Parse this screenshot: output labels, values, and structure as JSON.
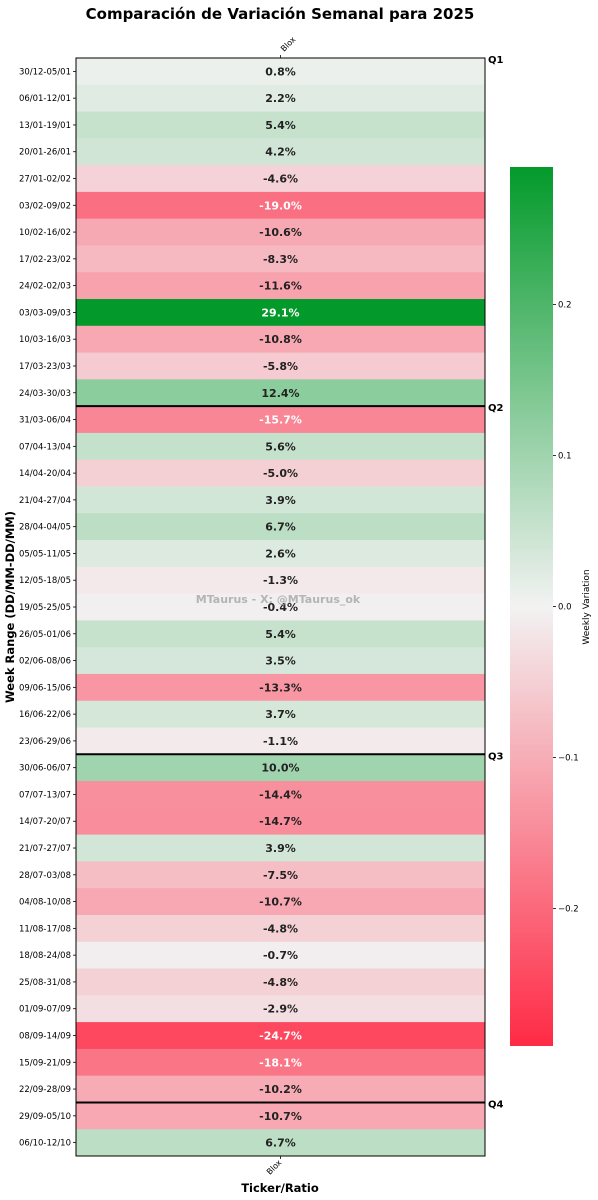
{
  "chart_data": {
    "type": "heatmap",
    "title": "Comparación de Variación Semanal para 2025",
    "xlabel": "Ticker/Ratio",
    "ylabel": "Week Range (DD/MM-DD/MM)",
    "columns": [
      "Blox"
    ],
    "colorbar": {
      "label": "Weekly Variation",
      "ticks": [
        "0.2",
        "0.1",
        "0.0",
        "−0.1",
        "−0.2"
      ],
      "tick_values": [
        0.2,
        0.1,
        0.0,
        -0.1,
        -0.2
      ],
      "range": [
        -0.291,
        0.291
      ],
      "low_color": "#ff2a45",
      "mid_color": "#f2f2f2",
      "high_color": "#039a2b"
    },
    "watermark": "MTaurus - X: @MTaurus_ok",
    "quarter_markers": [
      {
        "label": "Q1",
        "row": 0
      },
      {
        "label": "Q2",
        "row": 13
      },
      {
        "label": "Q3",
        "row": 26
      },
      {
        "label": "Q4",
        "row": 39
      }
    ],
    "rows": [
      {
        "week": "30/12-05/01",
        "value": 0.008,
        "label": "0.8%"
      },
      {
        "week": "06/01-12/01",
        "value": 0.022,
        "label": "2.2%"
      },
      {
        "week": "13/01-19/01",
        "value": 0.054,
        "label": "5.4%"
      },
      {
        "week": "20/01-26/01",
        "value": 0.042,
        "label": "4.2%"
      },
      {
        "week": "27/01-02/02",
        "value": -0.046,
        "label": "-4.6%"
      },
      {
        "week": "03/02-09/02",
        "value": -0.19,
        "label": "-19.0%"
      },
      {
        "week": "10/02-16/02",
        "value": -0.106,
        "label": "-10.6%"
      },
      {
        "week": "17/02-23/02",
        "value": -0.083,
        "label": "-8.3%"
      },
      {
        "week": "24/02-02/03",
        "value": -0.116,
        "label": "-11.6%"
      },
      {
        "week": "03/03-09/03",
        "value": 0.291,
        "label": "29.1%"
      },
      {
        "week": "10/03-16/03",
        "value": -0.108,
        "label": "-10.8%"
      },
      {
        "week": "17/03-23/03",
        "value": -0.058,
        "label": "-5.8%"
      },
      {
        "week": "24/03-30/03",
        "value": 0.124,
        "label": "12.4%"
      },
      {
        "week": "31/03-06/04",
        "value": -0.157,
        "label": "-15.7%"
      },
      {
        "week": "07/04-13/04",
        "value": 0.056,
        "label": "5.6%"
      },
      {
        "week": "14/04-20/04",
        "value": -0.05,
        "label": "-5.0%"
      },
      {
        "week": "21/04-27/04",
        "value": 0.039,
        "label": "3.9%"
      },
      {
        "week": "28/04-04/05",
        "value": 0.067,
        "label": "6.7%"
      },
      {
        "week": "05/05-11/05",
        "value": 0.026,
        "label": "2.6%"
      },
      {
        "week": "12/05-18/05",
        "value": -0.013,
        "label": "-1.3%"
      },
      {
        "week": "19/05-25/05",
        "value": -0.004,
        "label": "-0.4%"
      },
      {
        "week": "26/05-01/06",
        "value": 0.054,
        "label": "5.4%"
      },
      {
        "week": "02/06-08/06",
        "value": 0.035,
        "label": "3.5%"
      },
      {
        "week": "09/06-15/06",
        "value": -0.133,
        "label": "-13.3%"
      },
      {
        "week": "16/06-22/06",
        "value": 0.037,
        "label": "3.7%"
      },
      {
        "week": "23/06-29/06",
        "value": -0.011,
        "label": "-1.1%"
      },
      {
        "week": "30/06-06/07",
        "value": 0.1,
        "label": "10.0%"
      },
      {
        "week": "07/07-13/07",
        "value": -0.144,
        "label": "-14.4%"
      },
      {
        "week": "14/07-20/07",
        "value": -0.147,
        "label": "-14.7%"
      },
      {
        "week": "21/07-27/07",
        "value": 0.039,
        "label": "3.9%"
      },
      {
        "week": "28/07-03/08",
        "value": -0.075,
        "label": "-7.5%"
      },
      {
        "week": "04/08-10/08",
        "value": -0.107,
        "label": "-10.7%"
      },
      {
        "week": "11/08-17/08",
        "value": -0.048,
        "label": "-4.8%"
      },
      {
        "week": "18/08-24/08",
        "value": -0.007,
        "label": "-0.7%"
      },
      {
        "week": "25/08-31/08",
        "value": -0.048,
        "label": "-4.8%"
      },
      {
        "week": "01/09-07/09",
        "value": -0.029,
        "label": "-2.9%"
      },
      {
        "week": "08/09-14/09",
        "value": -0.247,
        "label": "-24.7%"
      },
      {
        "week": "15/09-21/09",
        "value": -0.181,
        "label": "-18.1%"
      },
      {
        "week": "22/09-28/09",
        "value": -0.102,
        "label": "-10.2%"
      },
      {
        "week": "29/09-05/10",
        "value": -0.107,
        "label": "-10.7%"
      },
      {
        "week": "06/10-12/10",
        "value": 0.067,
        "label": "6.7%"
      }
    ]
  }
}
